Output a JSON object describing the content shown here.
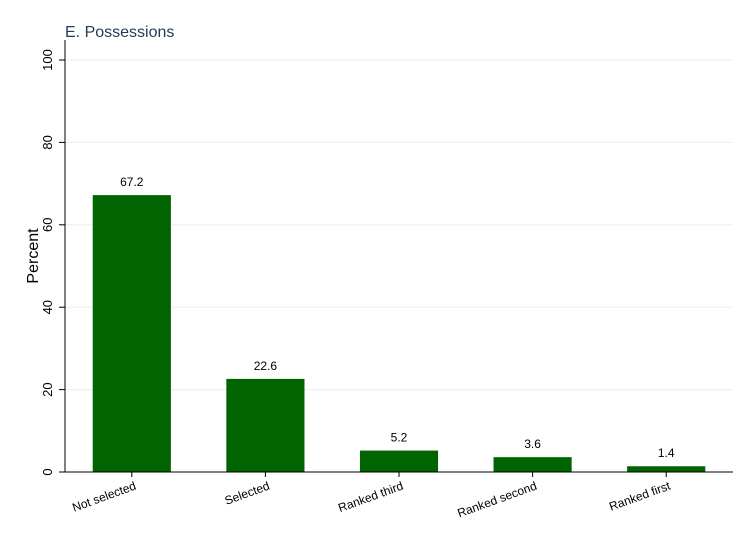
{
  "chart_data": {
    "type": "bar",
    "title": "E. Possessions",
    "xlabel": "",
    "ylabel": "Percent",
    "categories": [
      "Not selected",
      "Selected",
      "Ranked third",
      "Ranked second",
      "Ranked first"
    ],
    "values": [
      67.2,
      22.6,
      5.2,
      3.6,
      1.4
    ],
    "data_labels": [
      "67.2",
      "22.6",
      "5.2",
      "3.6",
      "1.4"
    ],
    "ylim": [
      0,
      100
    ],
    "yticks": [
      0,
      20,
      40,
      60,
      80,
      100
    ],
    "grid": true,
    "legend": "none",
    "colors": {
      "bar": "#006400",
      "title": "#1e3c5a",
      "grid": "#eaf2f3",
      "axis": "#000000",
      "text": "#000000"
    }
  }
}
